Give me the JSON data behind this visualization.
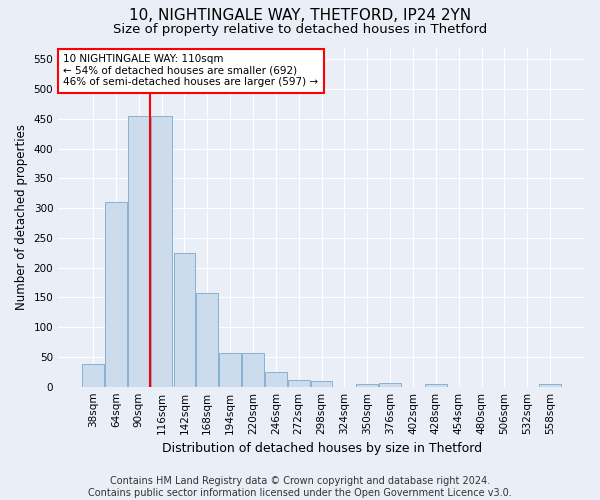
{
  "title1": "10, NIGHTINGALE WAY, THETFORD, IP24 2YN",
  "title2": "Size of property relative to detached houses in Thetford",
  "xlabel": "Distribution of detached houses by size in Thetford",
  "ylabel": "Number of detached properties",
  "footnote": "Contains HM Land Registry data © Crown copyright and database right 2024.\nContains public sector information licensed under the Open Government Licence v3.0.",
  "categories": [
    "38sqm",
    "64sqm",
    "90sqm",
    "116sqm",
    "142sqm",
    "168sqm",
    "194sqm",
    "220sqm",
    "246sqm",
    "272sqm",
    "298sqm",
    "324sqm",
    "350sqm",
    "376sqm",
    "402sqm",
    "428sqm",
    "454sqm",
    "480sqm",
    "506sqm",
    "532sqm",
    "558sqm"
  ],
  "values": [
    38,
    310,
    455,
    455,
    225,
    158,
    57,
    57,
    25,
    11,
    9,
    0,
    5,
    6,
    0,
    5,
    0,
    0,
    0,
    0,
    5
  ],
  "bar_color": "#ccdcec",
  "bar_edge_color": "#7aaaca",
  "vline_color": "red",
  "annotation_text": "10 NIGHTINGALE WAY: 110sqm\n← 54% of detached houses are smaller (692)\n46% of semi-detached houses are larger (597) →",
  "annotation_box_color": "white",
  "annotation_box_edge": "red",
  "ylim": [
    0,
    570
  ],
  "yticks": [
    0,
    50,
    100,
    150,
    200,
    250,
    300,
    350,
    400,
    450,
    500,
    550
  ],
  "bg_color": "#eaeff7",
  "plot_bg_color": "#eaeff7",
  "title1_fontsize": 11,
  "title2_fontsize": 9.5,
  "xlabel_fontsize": 9,
  "ylabel_fontsize": 8.5,
  "tick_fontsize": 7.5,
  "footnote_fontsize": 7
}
